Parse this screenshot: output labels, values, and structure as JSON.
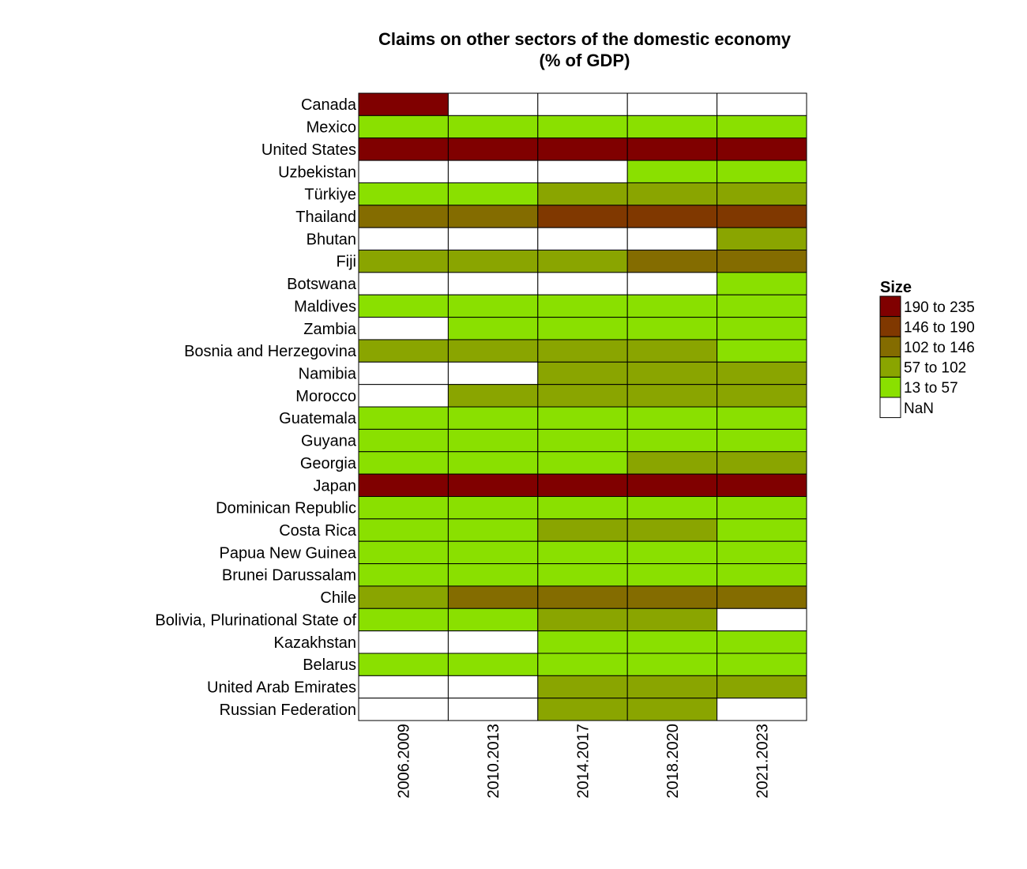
{
  "chart_data": {
    "type": "heatmap",
    "title": [
      "Claims on other sectors of the domestic economy",
      "(% of GDP)"
    ],
    "columns": [
      "2006.2009",
      "2010.2013",
      "2014.2017",
      "2018.2020",
      "2021.2023"
    ],
    "rows": [
      "Canada",
      "Mexico",
      "United States",
      "Uzbekistan",
      "Türkiye",
      "Thailand",
      "Bhutan",
      "Fiji",
      "Botswana",
      "Maldives",
      "Zambia",
      "Bosnia and Herzegovina",
      "Namibia",
      "Morocco",
      "Guatemala",
      "Guyana",
      "Georgia",
      "Japan",
      "Dominican Republic",
      "Costa Rica",
      "Papua New Guinea",
      "Brunei Darussalam",
      "Chile",
      "Bolivia, Plurinational State of",
      "Kazakhstan",
      "Belarus",
      "United Arab Emirates",
      "Russian Federation"
    ],
    "legend_title": "Size",
    "legend": [
      {
        "label": "190 to 235",
        "color": "#800000"
      },
      {
        "label": "146 to 190",
        "color": "#803800"
      },
      {
        "label": "102 to 146",
        "color": "#846c00"
      },
      {
        "label": "57 to 102",
        "color": "#8aa500"
      },
      {
        "label": "13 to 57",
        "color": "#8ae000"
      },
      {
        "label": "NaN",
        "color": "#ffffff"
      }
    ],
    "legend_placement": "right",
    "bins": [
      [
        "190 to 235",
        "NaN",
        "NaN",
        "NaN",
        "NaN"
      ],
      [
        "13 to 57",
        "13 to 57",
        "13 to 57",
        "13 to 57",
        "13 to 57"
      ],
      [
        "190 to 235",
        "190 to 235",
        "190 to 235",
        "190 to 235",
        "190 to 235"
      ],
      [
        "NaN",
        "NaN",
        "NaN",
        "13 to 57",
        "13 to 57"
      ],
      [
        "13 to 57",
        "13 to 57",
        "57 to 102",
        "57 to 102",
        "57 to 102"
      ],
      [
        "102 to 146",
        "102 to 146",
        "146 to 190",
        "146 to 190",
        "146 to 190"
      ],
      [
        "NaN",
        "NaN",
        "NaN",
        "NaN",
        "57 to 102"
      ],
      [
        "57 to 102",
        "57 to 102",
        "57 to 102",
        "102 to 146",
        "102 to 146"
      ],
      [
        "NaN",
        "NaN",
        "NaN",
        "NaN",
        "13 to 57"
      ],
      [
        "13 to 57",
        "13 to 57",
        "13 to 57",
        "13 to 57",
        "13 to 57"
      ],
      [
        "NaN",
        "13 to 57",
        "13 to 57",
        "13 to 57",
        "13 to 57"
      ],
      [
        "57 to 102",
        "57 to 102",
        "57 to 102",
        "57 to 102",
        "13 to 57"
      ],
      [
        "NaN",
        "NaN",
        "57 to 102",
        "57 to 102",
        "57 to 102"
      ],
      [
        "NaN",
        "57 to 102",
        "57 to 102",
        "57 to 102",
        "57 to 102"
      ],
      [
        "13 to 57",
        "13 to 57",
        "13 to 57",
        "13 to 57",
        "13 to 57"
      ],
      [
        "13 to 57",
        "13 to 57",
        "13 to 57",
        "13 to 57",
        "13 to 57"
      ],
      [
        "13 to 57",
        "13 to 57",
        "13 to 57",
        "57 to 102",
        "57 to 102"
      ],
      [
        "190 to 235",
        "190 to 235",
        "190 to 235",
        "190 to 235",
        "190 to 235"
      ],
      [
        "13 to 57",
        "13 to 57",
        "13 to 57",
        "13 to 57",
        "13 to 57"
      ],
      [
        "13 to 57",
        "13 to 57",
        "57 to 102",
        "57 to 102",
        "13 to 57"
      ],
      [
        "13 to 57",
        "13 to 57",
        "13 to 57",
        "13 to 57",
        "13 to 57"
      ],
      [
        "13 to 57",
        "13 to 57",
        "13 to 57",
        "13 to 57",
        "13 to 57"
      ],
      [
        "57 to 102",
        "102 to 146",
        "102 to 146",
        "102 to 146",
        "102 to 146"
      ],
      [
        "13 to 57",
        "13 to 57",
        "57 to 102",
        "57 to 102",
        "NaN"
      ],
      [
        "NaN",
        "NaN",
        "13 to 57",
        "13 to 57",
        "13 to 57"
      ],
      [
        "13 to 57",
        "13 to 57",
        "13 to 57",
        "13 to 57",
        "13 to 57"
      ],
      [
        "NaN",
        "NaN",
        "57 to 102",
        "57 to 102",
        "57 to 102"
      ],
      [
        "NaN",
        "NaN",
        "57 to 102",
        "57 to 102",
        "NaN"
      ]
    ]
  }
}
